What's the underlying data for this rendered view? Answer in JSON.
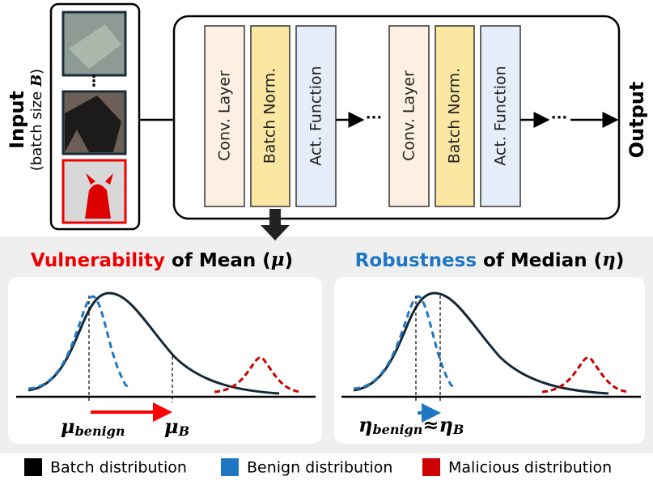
{
  "input": {
    "label": "Input",
    "sublabel_start": "(batch size ",
    "sublabel_symbol": "B",
    "sublabel_end": ")"
  },
  "network": {
    "blocks": [
      {
        "conv": "Conv. Layer",
        "norm": "Batch Norm.",
        "act": "Act. Function"
      },
      {
        "conv": "Conv. Layer",
        "norm": "Batch Norm.",
        "act": "Act. Function"
      }
    ],
    "ellipsis": "···"
  },
  "thumbnail_ellipsis": "⋮",
  "output": "Output",
  "panels": [
    {
      "title_highlight": "Vulnerability",
      "title_rest": " of Mean (",
      "title_symbol": "μ",
      "title_end": ")",
      "benign_symbol": "μ",
      "benign_subscript": "benign",
      "batch_symbol": "μ",
      "batch_subscript": "B"
    },
    {
      "title_highlight": "Robustness",
      "title_rest": " of Median (",
      "title_symbol": "η",
      "title_end": ")",
      "benign_symbol": "η",
      "benign_subscript": "benign",
      "approx": "≈",
      "batch_symbol": "η",
      "batch_subscript": "B"
    }
  ],
  "legend": [
    "Batch distribution",
    "Benign distribution",
    "Malicious distribution"
  ]
}
